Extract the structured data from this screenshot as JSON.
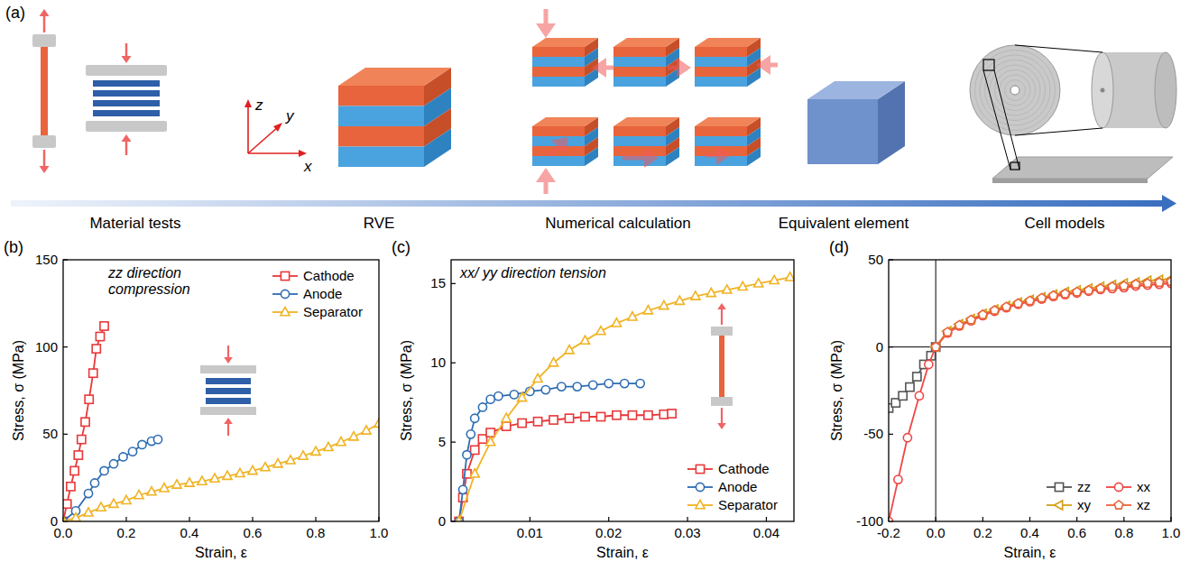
{
  "diagram": {
    "label": "(a)",
    "steps": [
      "Material tests",
      "RVE",
      "Numerical calculation",
      "Equivalent element",
      "Cell models"
    ],
    "axis_labels": [
      "x",
      "y",
      "z"
    ]
  },
  "chart_data": [
    {
      "type": "line",
      "title": "(b)",
      "annotations": [
        "zz direction",
        "compression"
      ],
      "x_label": "Strain, ε",
      "y_label": "Stress, σ (MPa)",
      "legend": "upper right",
      "xlim": [
        0,
        1.0
      ],
      "xticks": [
        {
          "value": 0,
          "label": "0.0"
        },
        0.2,
        0.4,
        0.6,
        0.8,
        {
          "value": 1.0,
          "label": "1.0"
        }
      ],
      "ylim": [
        0,
        150
      ],
      "yticks": [
        0,
        50,
        100,
        150
      ],
      "series": [
        {
          "name": "Cathode",
          "color": "#e8383a",
          "marker": "square",
          "x": [
            0,
            0.012,
            0.024,
            0.036,
            0.048,
            0.058,
            0.07,
            0.082,
            0.095,
            0.105,
            0.117,
            0.13
          ],
          "values": [
            0,
            10,
            20,
            29,
            38,
            47,
            57,
            70,
            85,
            99,
            106,
            112
          ]
        },
        {
          "name": "Anode",
          "color": "#2e6db4",
          "marker": "circle",
          "x": [
            0,
            0.04,
            0.08,
            0.1,
            0.13,
            0.16,
            0.19,
            0.22,
            0.25,
            0.28,
            0.3
          ],
          "values": [
            0,
            6,
            16,
            22,
            29,
            33,
            37,
            40,
            44,
            46,
            47
          ]
        },
        {
          "name": "Separator",
          "color": "#f0b323",
          "marker": "triangle",
          "x": [
            0,
            0.04,
            0.08,
            0.12,
            0.16,
            0.2,
            0.24,
            0.28,
            0.32,
            0.36,
            0.4,
            0.44,
            0.48,
            0.52,
            0.56,
            0.6,
            0.64,
            0.68,
            0.72,
            0.76,
            0.8,
            0.84,
            0.88,
            0.92,
            0.96,
            1.0
          ],
          "values": [
            0,
            2,
            5,
            8,
            10,
            12,
            15,
            17,
            19,
            21,
            22,
            23,
            24.5,
            26,
            27.5,
            29,
            31,
            33,
            35,
            37.5,
            40,
            42.5,
            45.5,
            48.5,
            52,
            56
          ]
        }
      ]
    },
    {
      "type": "line",
      "title": "(c)",
      "annotations": [
        "xx/ yy direction tension"
      ],
      "x_label": "Strain, ε",
      "y_label": "Stress, σ (MPa)",
      "legend": "lower right",
      "xlim": [
        0,
        0.0435
      ],
      "xticks": [
        0.01,
        0.02,
        0.03,
        0.04
      ],
      "ylim": [
        0,
        16.5
      ],
      "yticks": [
        0,
        5,
        10,
        15
      ],
      "series": [
        {
          "name": "Cathode",
          "color": "#e8383a",
          "marker": "square",
          "x": [
            0.001,
            0.0015,
            0.002,
            0.003,
            0.004,
            0.005,
            0.007,
            0.009,
            0.011,
            0.013,
            0.015,
            0.017,
            0.019,
            0.021,
            0.023,
            0.025,
            0.027,
            0.028
          ],
          "values": [
            0,
            1.5,
            3,
            4.5,
            5.2,
            5.6,
            6.0,
            6.2,
            6.3,
            6.4,
            6.5,
            6.6,
            6.6,
            6.7,
            6.7,
            6.7,
            6.75,
            6.8
          ]
        },
        {
          "name": "Anode",
          "color": "#2e6db4",
          "marker": "circle",
          "x": [
            0.001,
            0.0015,
            0.002,
            0.0025,
            0.003,
            0.004,
            0.005,
            0.006,
            0.008,
            0.01,
            0.012,
            0.014,
            0.016,
            0.018,
            0.02,
            0.022,
            0.024
          ],
          "values": [
            0,
            2,
            4.2,
            5.5,
            6.5,
            7.2,
            7.7,
            7.9,
            8.0,
            8.2,
            8.3,
            8.5,
            8.5,
            8.6,
            8.7,
            8.7,
            8.7
          ]
        },
        {
          "name": "Separator",
          "color": "#f0b323",
          "marker": "triangle",
          "x": [
            0.001,
            0.003,
            0.005,
            0.007,
            0.009,
            0.011,
            0.013,
            0.015,
            0.017,
            0.019,
            0.021,
            0.023,
            0.025,
            0.027,
            0.029,
            0.031,
            0.033,
            0.035,
            0.037,
            0.039,
            0.041,
            0.043
          ],
          "values": [
            0,
            3,
            5,
            6.5,
            7.8,
            9,
            10,
            10.8,
            11.4,
            12,
            12.5,
            12.9,
            13.3,
            13.6,
            13.9,
            14.2,
            14.4,
            14.6,
            14.8,
            15,
            15.2,
            15.4
          ]
        }
      ]
    },
    {
      "type": "line",
      "title": "(d)",
      "x_label": "Strain, ε",
      "y_label": "Stress, σ (MPa)",
      "legend": "lower right",
      "xlim": [
        -0.2,
        1.0
      ],
      "xticks": [
        -0.2,
        {
          "value": 0,
          "label": "0.0"
        },
        0.2,
        0.4,
        0.6,
        0.8,
        {
          "value": 1.0,
          "label": "1.0"
        }
      ],
      "ylim": [
        -100,
        50
      ],
      "yticks": [
        -100,
        -50,
        0,
        50
      ],
      "series": [
        {
          "name": "zz",
          "color": "#555555",
          "marker": "square",
          "x": [
            -0.2,
            -0.17,
            -0.14,
            -0.11,
            -0.08,
            -0.05,
            -0.02,
            0
          ],
          "values": [
            -35,
            -32,
            -28,
            -23,
            -17,
            -10,
            -5,
            0
          ]
        },
        {
          "name": "xx",
          "color": "#f04545",
          "marker": "circle",
          "x": [
            -0.2,
            -0.16,
            -0.12,
            -0.07,
            -0.03,
            0,
            0.05,
            0.1,
            0.15,
            0.2,
            0.25,
            0.3,
            0.35,
            0.4,
            0.45,
            0.5,
            0.55,
            0.6,
            0.65,
            0.7,
            0.75,
            0.8,
            0.85,
            0.9,
            0.95,
            1.0
          ],
          "values": [
            -100,
            -76,
            -52,
            -28,
            -10,
            0,
            8,
            12,
            15,
            18,
            20.5,
            22.5,
            24.5,
            26,
            27.5,
            29,
            30,
            31,
            32,
            33,
            33.5,
            34,
            35,
            35.5,
            36,
            36.5
          ]
        },
        {
          "name": "xy",
          "color": "#d4a017",
          "marker": "triangle-left",
          "x": [
            0,
            0.05,
            0.1,
            0.15,
            0.2,
            0.25,
            0.3,
            0.35,
            0.4,
            0.45,
            0.5,
            0.55,
            0.6,
            0.65,
            0.7,
            0.75,
            0.8,
            0.85,
            0.9,
            0.95,
            1.0
          ],
          "values": [
            0,
            9,
            13,
            16,
            19,
            21.5,
            23.5,
            25.5,
            27,
            28.5,
            30,
            31.5,
            32.5,
            33.5,
            34.5,
            35.5,
            36.5,
            37,
            38,
            38.5,
            39
          ]
        },
        {
          "name": "xz",
          "color": "#e8643a",
          "marker": "pentagon",
          "x": [
            0,
            0.05,
            0.1,
            0.15,
            0.2,
            0.25,
            0.3,
            0.35,
            0.4,
            0.45,
            0.5,
            0.55,
            0.6,
            0.65,
            0.7,
            0.75,
            0.8,
            0.85,
            0.9,
            0.95,
            1.0
          ],
          "values": [
            0,
            8.5,
            12.5,
            15.5,
            18.5,
            21,
            23,
            25,
            26.5,
            28,
            29.5,
            30.5,
            31.5,
            32.5,
            33.5,
            34.5,
            35,
            36,
            36.5,
            37,
            37.5
          ]
        }
      ]
    }
  ]
}
